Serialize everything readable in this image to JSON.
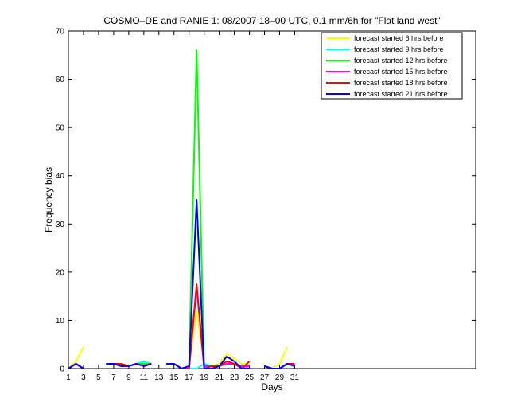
{
  "chart_data": {
    "type": "line",
    "title": "COSMO–DE and RANIE 1: 08/2007 18–00 UTC, 0.1 mm/6h for \"Flat land west\"",
    "xlabel": "Days",
    "ylabel": "Frequency bias",
    "xlim": [
      1,
      55
    ],
    "ylim": [
      0,
      70
    ],
    "xticks": [
      1,
      3,
      5,
      7,
      9,
      11,
      13,
      15,
      17,
      19,
      21,
      23,
      25,
      27,
      29,
      31
    ],
    "yticks": [
      0,
      10,
      20,
      30,
      40,
      50,
      60,
      70
    ],
    "grid": false,
    "legend_position": "top-right",
    "series": [
      {
        "name": "forecast started 6 hrs before",
        "color": "#ffff00",
        "points": [
          [
            1,
            0
          ],
          [
            2,
            1.5
          ],
          [
            3,
            4.5
          ],
          null,
          [
            6,
            1
          ],
          [
            7,
            1
          ],
          [
            8,
            0.5
          ],
          [
            9,
            0.5
          ],
          [
            10,
            1
          ],
          [
            11,
            1.2
          ],
          [
            12,
            1
          ],
          null,
          [
            14,
            1
          ],
          [
            15,
            1
          ],
          [
            16,
            0
          ],
          [
            17,
            0.5
          ],
          [
            18,
            12
          ],
          [
            19,
            1
          ],
          [
            20,
            0.5
          ],
          [
            21,
            1
          ],
          [
            22,
            3
          ],
          [
            23,
            2
          ],
          [
            24,
            1
          ],
          [
            25,
            1
          ],
          null,
          [
            27,
            0.5
          ],
          [
            28,
            0
          ],
          [
            29,
            1
          ],
          [
            30,
            4.5
          ]
        ]
      },
      {
        "name": "forecast started 9 hrs before",
        "color": "#00ffff",
        "points": [
          [
            1,
            0
          ],
          [
            2,
            1
          ],
          [
            3,
            0
          ],
          null,
          [
            6,
            1
          ],
          [
            7,
            1
          ],
          [
            8,
            1
          ],
          [
            9,
            0.5
          ],
          [
            10,
            1
          ],
          [
            11,
            1.5
          ],
          [
            12,
            1
          ],
          null,
          [
            14,
            1
          ],
          [
            15,
            1
          ],
          [
            16,
            0
          ],
          [
            17,
            0
          ],
          [
            18,
            0
          ],
          [
            19,
            1
          ],
          [
            20,
            0.5
          ],
          [
            21,
            0.5
          ],
          [
            22,
            1
          ],
          [
            23,
            1
          ],
          [
            24,
            0.5
          ],
          [
            25,
            0.5
          ],
          null,
          [
            27,
            0.5
          ],
          [
            28,
            0
          ],
          [
            29,
            0
          ],
          [
            30,
            1
          ],
          [
            31,
            1
          ]
        ]
      },
      {
        "name": "forecast started 12 hrs before",
        "color": "#00ff00",
        "points": [
          [
            1,
            0
          ],
          [
            2,
            1
          ],
          [
            3,
            0
          ],
          null,
          [
            6,
            1
          ],
          [
            7,
            1
          ],
          [
            8,
            1
          ],
          [
            9,
            0.5
          ],
          [
            10,
            1
          ],
          [
            11,
            1
          ],
          [
            12,
            1
          ],
          null,
          [
            14,
            1
          ],
          [
            15,
            1
          ],
          [
            16,
            0
          ],
          [
            17,
            0.5
          ],
          [
            18,
            66
          ],
          [
            19,
            0.5
          ],
          [
            20,
            0.5
          ],
          [
            21,
            0.5
          ],
          [
            22,
            1.5
          ],
          [
            23,
            1
          ],
          [
            24,
            0.5
          ],
          [
            25,
            0
          ],
          null,
          [
            27,
            0.5
          ],
          [
            28,
            0
          ],
          [
            29,
            0
          ],
          [
            30,
            1
          ],
          [
            31,
            1
          ]
        ]
      },
      {
        "name": "forecast started 15 hrs before",
        "color": "#ff00ff",
        "points": [
          [
            1,
            0
          ],
          [
            2,
            1
          ],
          [
            3,
            0
          ],
          null,
          [
            6,
            1
          ],
          [
            7,
            1
          ],
          [
            8,
            0.5
          ],
          [
            9,
            0.5
          ],
          [
            10,
            1
          ],
          [
            11,
            0.5
          ],
          [
            12,
            1
          ],
          null,
          [
            14,
            1
          ],
          [
            15,
            1
          ],
          [
            16,
            0
          ],
          [
            17,
            0
          ],
          [
            18,
            17
          ],
          [
            19,
            0.5
          ],
          [
            20,
            0.5
          ],
          [
            21,
            0.5
          ],
          [
            22,
            1
          ],
          [
            23,
            1
          ],
          [
            24,
            0.5
          ],
          [
            25,
            0.5
          ],
          null,
          [
            27,
            0.5
          ],
          [
            28,
            0
          ],
          [
            29,
            0
          ],
          [
            30,
            1
          ],
          [
            31,
            1
          ]
        ]
      },
      {
        "name": "forecast started 18 hrs before",
        "color": "#ff0000",
        "points": [
          [
            1,
            0
          ],
          [
            2,
            1
          ],
          [
            3,
            0
          ],
          null,
          [
            6,
            1
          ],
          [
            7,
            1
          ],
          [
            8,
            1
          ],
          [
            9,
            0.5
          ],
          [
            10,
            1
          ],
          [
            11,
            0.5
          ],
          [
            12,
            1
          ],
          null,
          [
            14,
            1
          ],
          [
            15,
            1
          ],
          [
            16,
            0
          ],
          [
            17,
            0
          ],
          [
            18,
            17.5
          ],
          [
            19,
            0
          ],
          [
            20,
            0.5
          ],
          [
            21,
            0.5
          ],
          [
            22,
            1.5
          ],
          [
            23,
            1
          ],
          [
            24,
            0
          ],
          [
            25,
            1.5
          ],
          null,
          [
            27,
            0.5
          ],
          [
            28,
            0
          ],
          [
            29,
            0
          ],
          [
            30,
            1
          ],
          [
            31,
            1
          ]
        ]
      },
      {
        "name": "forecast started 21 hrs before",
        "color": "#0000ff",
        "points": [
          [
            1,
            0
          ],
          [
            2,
            1
          ],
          [
            3,
            0
          ],
          null,
          [
            6,
            1
          ],
          [
            7,
            1
          ],
          [
            8,
            0.5
          ],
          [
            9,
            0.5
          ],
          [
            10,
            1
          ],
          [
            11,
            0.5
          ],
          [
            12,
            1
          ],
          null,
          [
            14,
            1
          ],
          [
            15,
            1
          ],
          [
            16,
            0
          ],
          [
            17,
            0.5
          ],
          [
            18,
            35
          ],
          [
            19,
            0
          ],
          [
            20,
            0
          ],
          [
            21,
            0.5
          ],
          [
            22,
            2.5
          ],
          [
            23,
            1.5
          ],
          [
            24,
            0
          ],
          [
            25,
            0
          ],
          null,
          [
            27,
            0.5
          ],
          [
            28,
            0
          ],
          [
            29,
            0
          ],
          [
            30,
            1
          ],
          [
            31,
            0.5
          ]
        ]
      }
    ]
  }
}
